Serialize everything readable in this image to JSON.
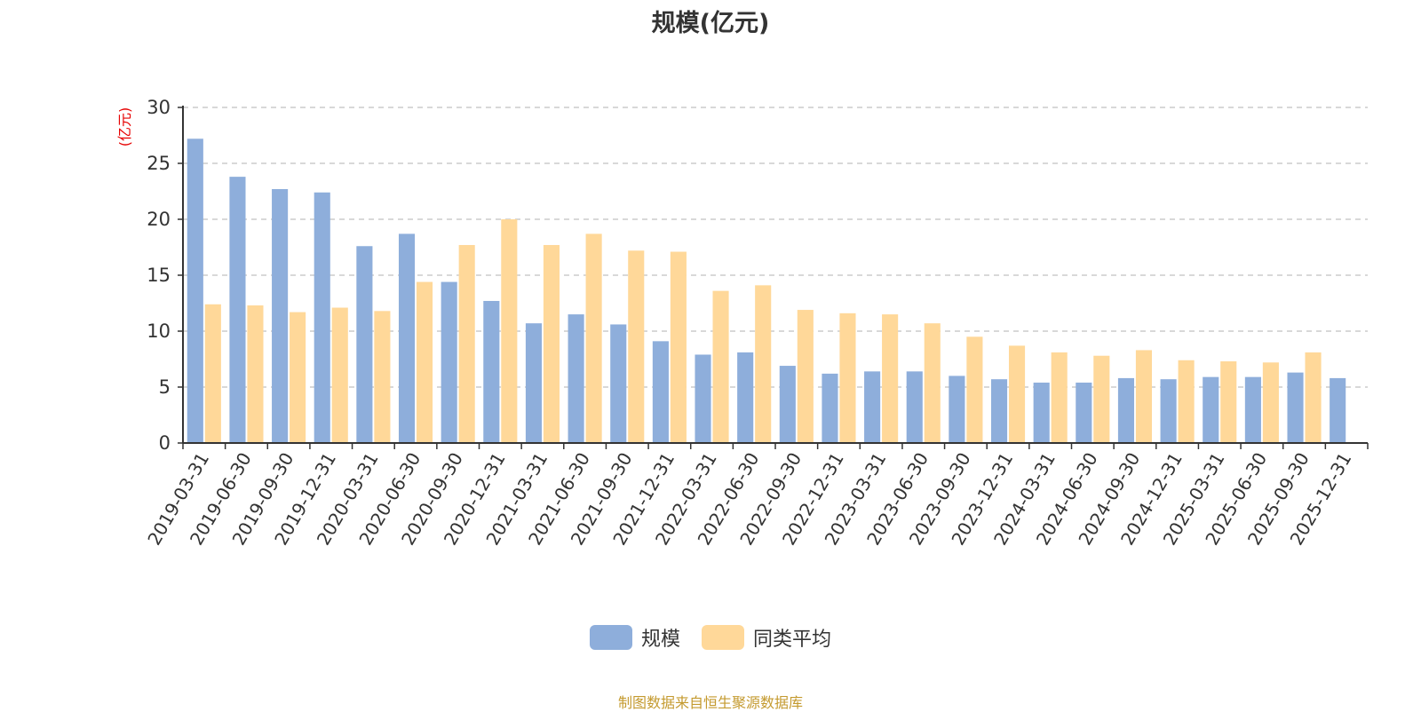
{
  "chart_data": {
    "type": "bar",
    "title": "规模(亿元)",
    "ylabel": "(亿元)",
    "xlabel": "",
    "ylim": [
      0,
      30
    ],
    "yticks": [
      0,
      5,
      10,
      15,
      20,
      25,
      30
    ],
    "grid": true,
    "legend_position": "bottom-center",
    "categories": [
      "2019-03-31",
      "2019-06-30",
      "2019-09-30",
      "2019-12-31",
      "2020-03-31",
      "2020-06-30",
      "2020-09-30",
      "2020-12-31",
      "2021-03-31",
      "2021-06-30",
      "2021-09-30",
      "2021-12-31",
      "2022-03-31",
      "2022-06-30",
      "2022-09-30",
      "2022-12-31",
      "2023-03-31",
      "2023-06-30",
      "2023-09-30",
      "2023-12-31",
      "2024-03-31",
      "2024-06-30",
      "2024-09-30",
      "2024-12-31",
      "2025-03-31",
      "2025-06-30",
      "2025-09-30",
      "2025-12-31"
    ],
    "series": [
      {
        "name": "规模",
        "color": "#8eaedb",
        "values": [
          27.2,
          23.8,
          22.7,
          22.4,
          17.6,
          18.7,
          14.4,
          12.7,
          10.7,
          11.5,
          10.6,
          9.1,
          7.9,
          8.1,
          6.9,
          6.2,
          6.4,
          6.4,
          6.0,
          5.7,
          5.4,
          5.4,
          5.8,
          5.7,
          5.9,
          5.9,
          6.3,
          5.8
        ]
      },
      {
        "name": "同类平均",
        "color": "#ffd899",
        "values": [
          12.4,
          12.3,
          11.7,
          12.1,
          11.8,
          14.4,
          17.7,
          20.0,
          17.7,
          18.7,
          17.2,
          17.1,
          13.6,
          14.1,
          11.9,
          11.6,
          11.5,
          10.7,
          9.5,
          8.7,
          8.1,
          7.8,
          8.3,
          7.4,
          7.3,
          7.2,
          8.1,
          null
        ]
      }
    ]
  },
  "colors": {
    "axis": "#333333",
    "grid": "#cccccc",
    "ylabel": "#e60000",
    "source": "#c49a2f"
  },
  "source_note": "制图数据来自恒生聚源数据库"
}
